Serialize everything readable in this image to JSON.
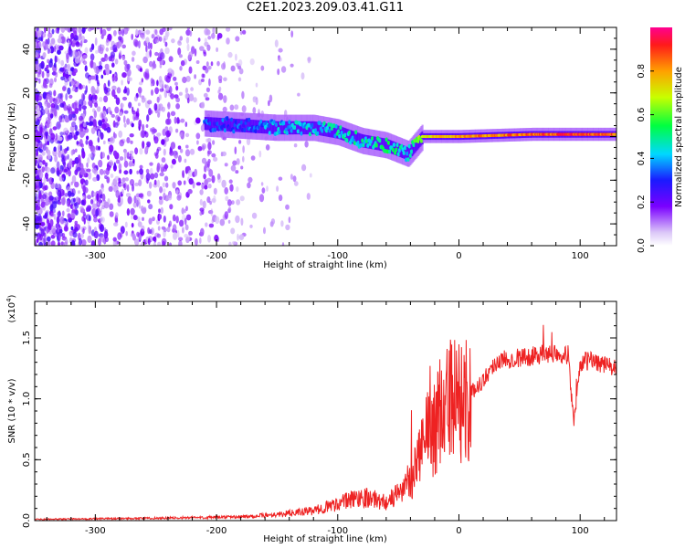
{
  "title": "C2E1.2023.209.03.41.G11",
  "colors": {
    "snr_line": "#ee2222",
    "axis": "#000000",
    "background": "#ffffff"
  },
  "chart_data": [
    {
      "type": "heatmap",
      "xlabel": "Height of straight line (km)",
      "ylabel": "Frequency (Hz)",
      "xlim": [
        -350,
        130
      ],
      "ylim": [
        -50,
        50
      ],
      "xticks": [
        -300,
        -200,
        -100,
        0,
        100
      ],
      "yticks": [
        -40,
        -20,
        0,
        20,
        40
      ],
      "colorbar": {
        "label": "Normalized spectral amplitude",
        "range": [
          0.0,
          1.0
        ],
        "ticks": [
          0.0,
          0.2,
          0.4,
          0.6,
          0.8
        ],
        "tick_labels": [
          "0.0",
          "0.2",
          "0.4",
          "0.6",
          "0.8"
        ]
      },
      "ridge": [
        {
          "x": -210,
          "f": 6,
          "amp": 0.3
        },
        {
          "x": -180,
          "f": 5,
          "amp": 0.32
        },
        {
          "x": -150,
          "f": 4,
          "amp": 0.4
        },
        {
          "x": -120,
          "f": 4,
          "amp": 0.42
        },
        {
          "x": -100,
          "f": 2,
          "amp": 0.45
        },
        {
          "x": -80,
          "f": -2,
          "amp": 0.45
        },
        {
          "x": -60,
          "f": -4,
          "amp": 0.5
        },
        {
          "x": -42,
          "f": -8,
          "amp": 0.45
        },
        {
          "x": -30,
          "f": 0,
          "amp": 0.7
        },
        {
          "x": 0,
          "f": 0,
          "amp": 0.8
        },
        {
          "x": 60,
          "f": 1,
          "amp": 0.85
        },
        {
          "x": 90,
          "f": 1,
          "amp": 0.9
        },
        {
          "x": 130,
          "f": 1,
          "amp": 0.85
        }
      ]
    },
    {
      "type": "line",
      "xlabel": "Height of straight line (km)",
      "ylabel": "SNR (10 * v/v)",
      "y_multiplier": "(x10",
      "y_multiplier_exp": "4",
      "xlim": [
        -350,
        130
      ],
      "ylim": [
        0,
        1.8
      ],
      "xticks": [
        -300,
        -200,
        -100,
        0,
        100
      ],
      "yticks": [
        0.0,
        0.5,
        1.0,
        1.5
      ],
      "ytick_labels": [
        "0.0",
        "0.5",
        "1.0",
        "1.5"
      ],
      "series": [
        {
          "x": [
            -350,
            -250,
            -180,
            -150,
            -120,
            -100,
            -80,
            -60,
            -50,
            -40,
            -30,
            -20,
            -10,
            0,
            10,
            20,
            30,
            40,
            60,
            80,
            90,
            95,
            100,
            110,
            120,
            130
          ],
          "y": [
            0.01,
            0.02,
            0.03,
            0.05,
            0.08,
            0.14,
            0.2,
            0.15,
            0.22,
            0.35,
            0.6,
            0.8,
            0.95,
            0.98,
            1.05,
            1.15,
            1.3,
            1.33,
            1.35,
            1.38,
            1.36,
            0.8,
            1.3,
            1.32,
            1.28,
            1.25
          ]
        }
      ]
    }
  ]
}
